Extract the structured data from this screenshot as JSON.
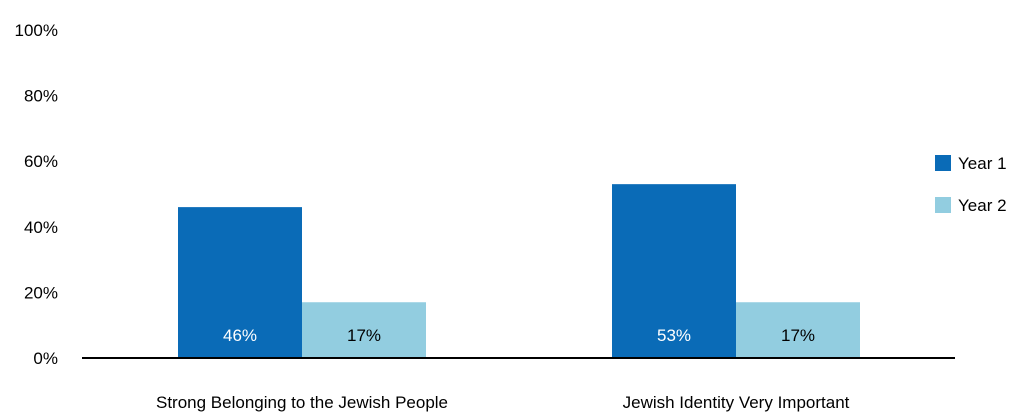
{
  "chart_data": {
    "type": "bar",
    "categories": [
      "Strong Belonging to the Jewish People",
      "Jewish Identity Very Important"
    ],
    "series": [
      {
        "name": "Year 1",
        "values": [
          46,
          53
        ],
        "color": "#0a6bb7",
        "label_color": "#ffffff"
      },
      {
        "name": "Year 2",
        "values": [
          17,
          17
        ],
        "color": "#92cde0",
        "label_color": "#000000"
      }
    ],
    "data_labels": [
      [
        "46%",
        "53%"
      ],
      [
        "17%",
        "17%"
      ]
    ],
    "y_ticks": [
      "0%",
      "20%",
      "40%",
      "60%",
      "80%",
      "100%"
    ],
    "ylim": [
      0,
      100
    ],
    "grid": false,
    "legend_position": "right"
  }
}
